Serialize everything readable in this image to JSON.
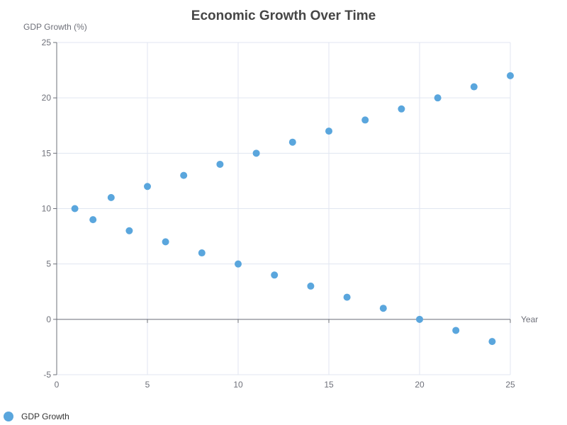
{
  "colors": {
    "series": "#5aa6dd",
    "grid": "#e0e6f1",
    "axis": "#6e7079",
    "title": "#464646"
  },
  "chart_data": {
    "type": "scatter",
    "title": "Economic Growth Over Time",
    "xlabel": "Year",
    "ylabel": "GDP Growth (%)",
    "xlim": [
      0,
      25
    ],
    "ylim": [
      -5,
      25
    ],
    "xticks": [
      0,
      5,
      10,
      15,
      20,
      25
    ],
    "yticks": [
      -5,
      0,
      5,
      10,
      15,
      20,
      25
    ],
    "grid": true,
    "legend_position": "bottom-left",
    "series": [
      {
        "name": "GDP Growth",
        "points": [
          [
            1,
            10
          ],
          [
            2,
            9
          ],
          [
            3,
            11
          ],
          [
            4,
            8
          ],
          [
            5,
            12
          ],
          [
            6,
            7
          ],
          [
            7,
            13
          ],
          [
            8,
            6
          ],
          [
            9,
            14
          ],
          [
            10,
            5
          ],
          [
            11,
            15
          ],
          [
            12,
            4
          ],
          [
            13,
            16
          ],
          [
            14,
            3
          ],
          [
            15,
            17
          ],
          [
            16,
            2
          ],
          [
            17,
            18
          ],
          [
            18,
            1
          ],
          [
            19,
            19
          ],
          [
            20,
            0
          ],
          [
            21,
            20
          ],
          [
            22,
            -1
          ],
          [
            23,
            21
          ],
          [
            24,
            -2
          ],
          [
            25,
            22
          ]
        ]
      }
    ]
  }
}
